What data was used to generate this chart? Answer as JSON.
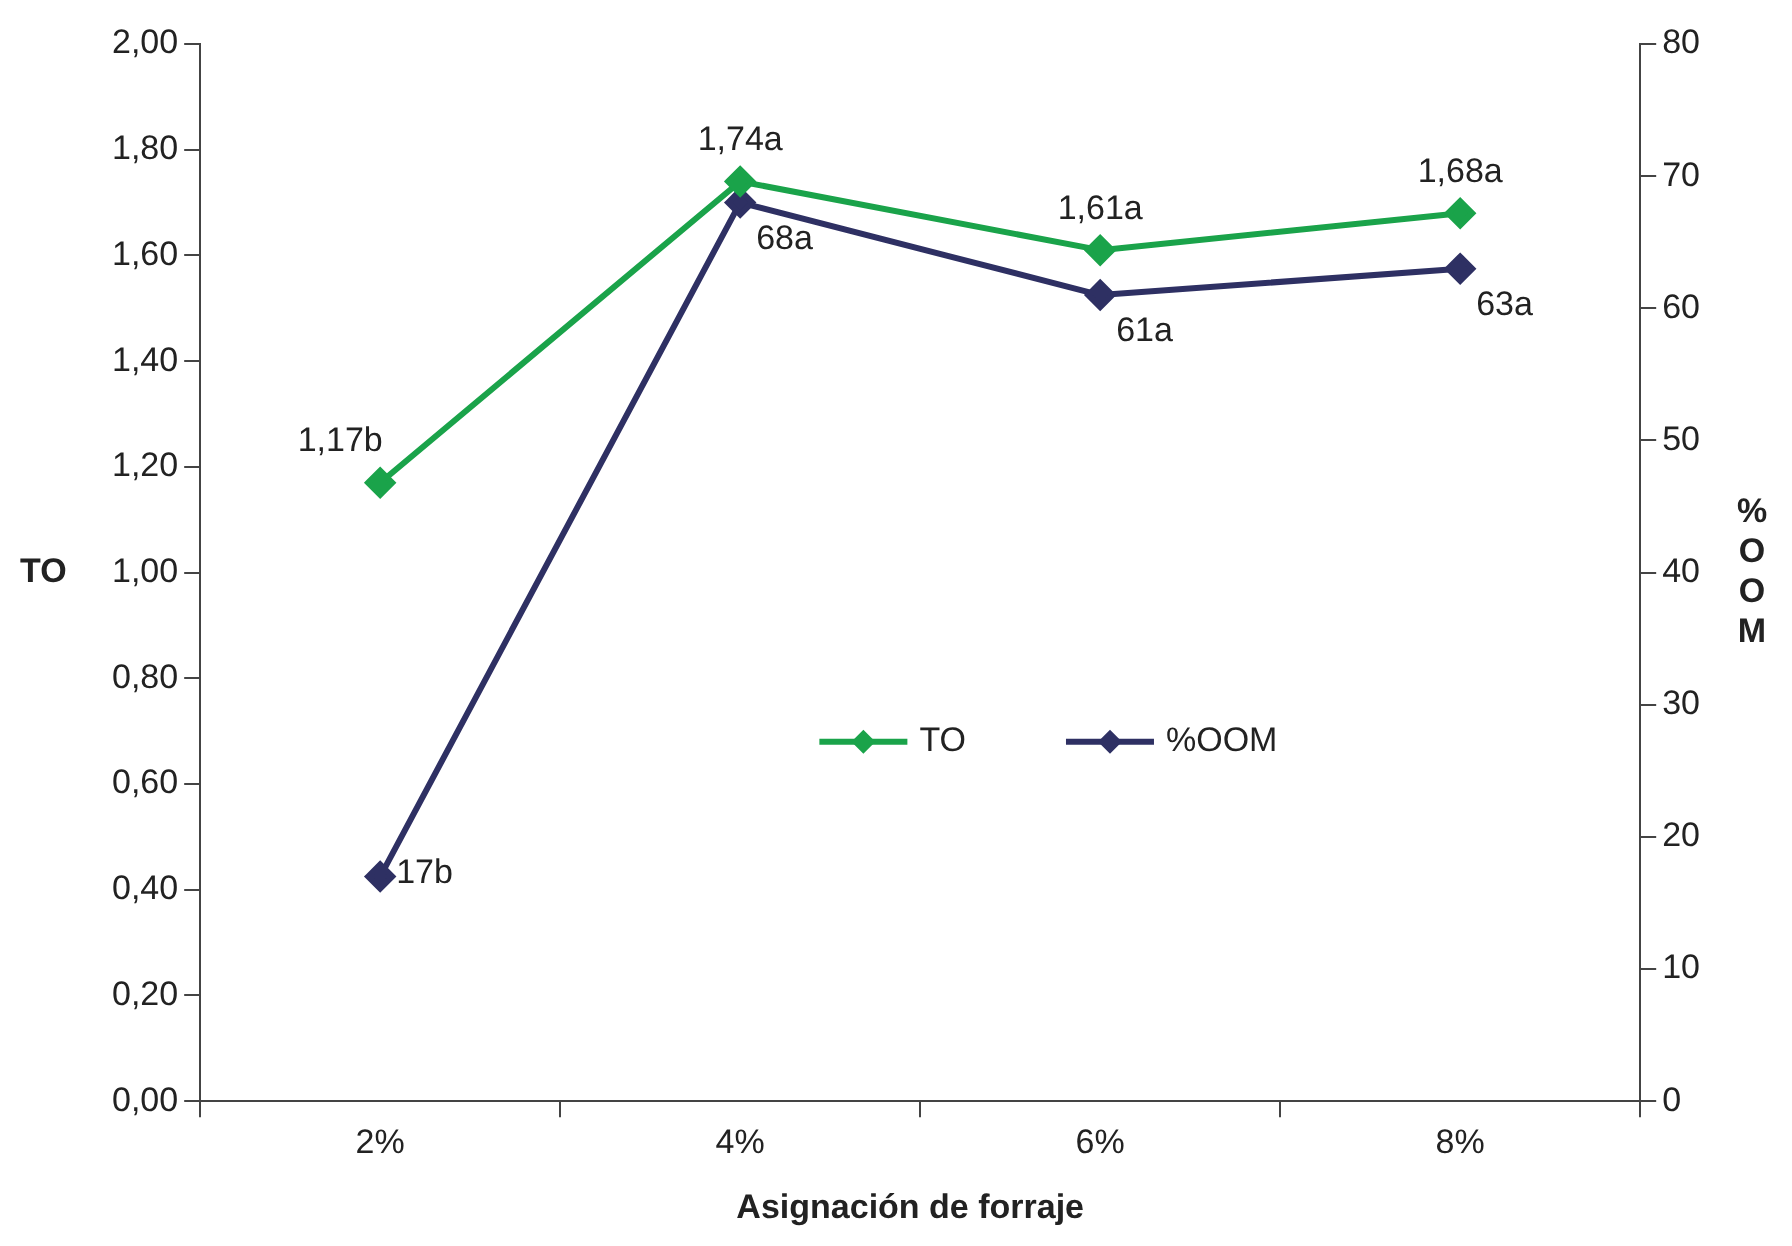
{
  "chart_data": {
    "type": "line",
    "xlabel": "Asignación de forraje",
    "ylabel": "TO",
    "y2label": "%OOM",
    "categories": [
      "2%",
      "4%",
      "6%",
      "8%"
    ],
    "series": [
      {
        "name": "TO",
        "color": "#1aa34a",
        "values": [
          1.17,
          1.74,
          1.61,
          1.68
        ],
        "value_labels": [
          "1,17b",
          "1,74a",
          "1,61a",
          "1,68a"
        ]
      },
      {
        "name": "%OOM",
        "color": "#2e3063",
        "axis": "y2",
        "values": [
          17,
          68,
          61,
          63
        ],
        "value_labels": [
          "17b",
          "68a",
          "61a",
          "63a"
        ]
      }
    ],
    "ylim": [
      0,
      2
    ],
    "yticks": [
      {
        "value": 0,
        "label": "0,00"
      },
      {
        "value": 0.2,
        "label": "0,20"
      },
      {
        "value": 0.4,
        "label": "0,40"
      },
      {
        "value": 0.6,
        "label": "0,60"
      },
      {
        "value": 0.8,
        "label": "0,80"
      },
      {
        "value": 1,
        "label": "1,00"
      },
      {
        "value": 1.2,
        "label": "1,20"
      },
      {
        "value": 1.4,
        "label": "1,40"
      },
      {
        "value": 1.6,
        "label": "1,60"
      },
      {
        "value": 1.8,
        "label": "1,80"
      },
      {
        "value": 2,
        "label": "2,00"
      }
    ],
    "y2lim": [
      0,
      80
    ],
    "y2ticks": [
      0,
      10,
      20,
      30,
      40,
      50,
      60,
      70,
      80
    ],
    "grid": false,
    "legend": "center",
    "marker": "diamond",
    "line_style": "solid"
  }
}
